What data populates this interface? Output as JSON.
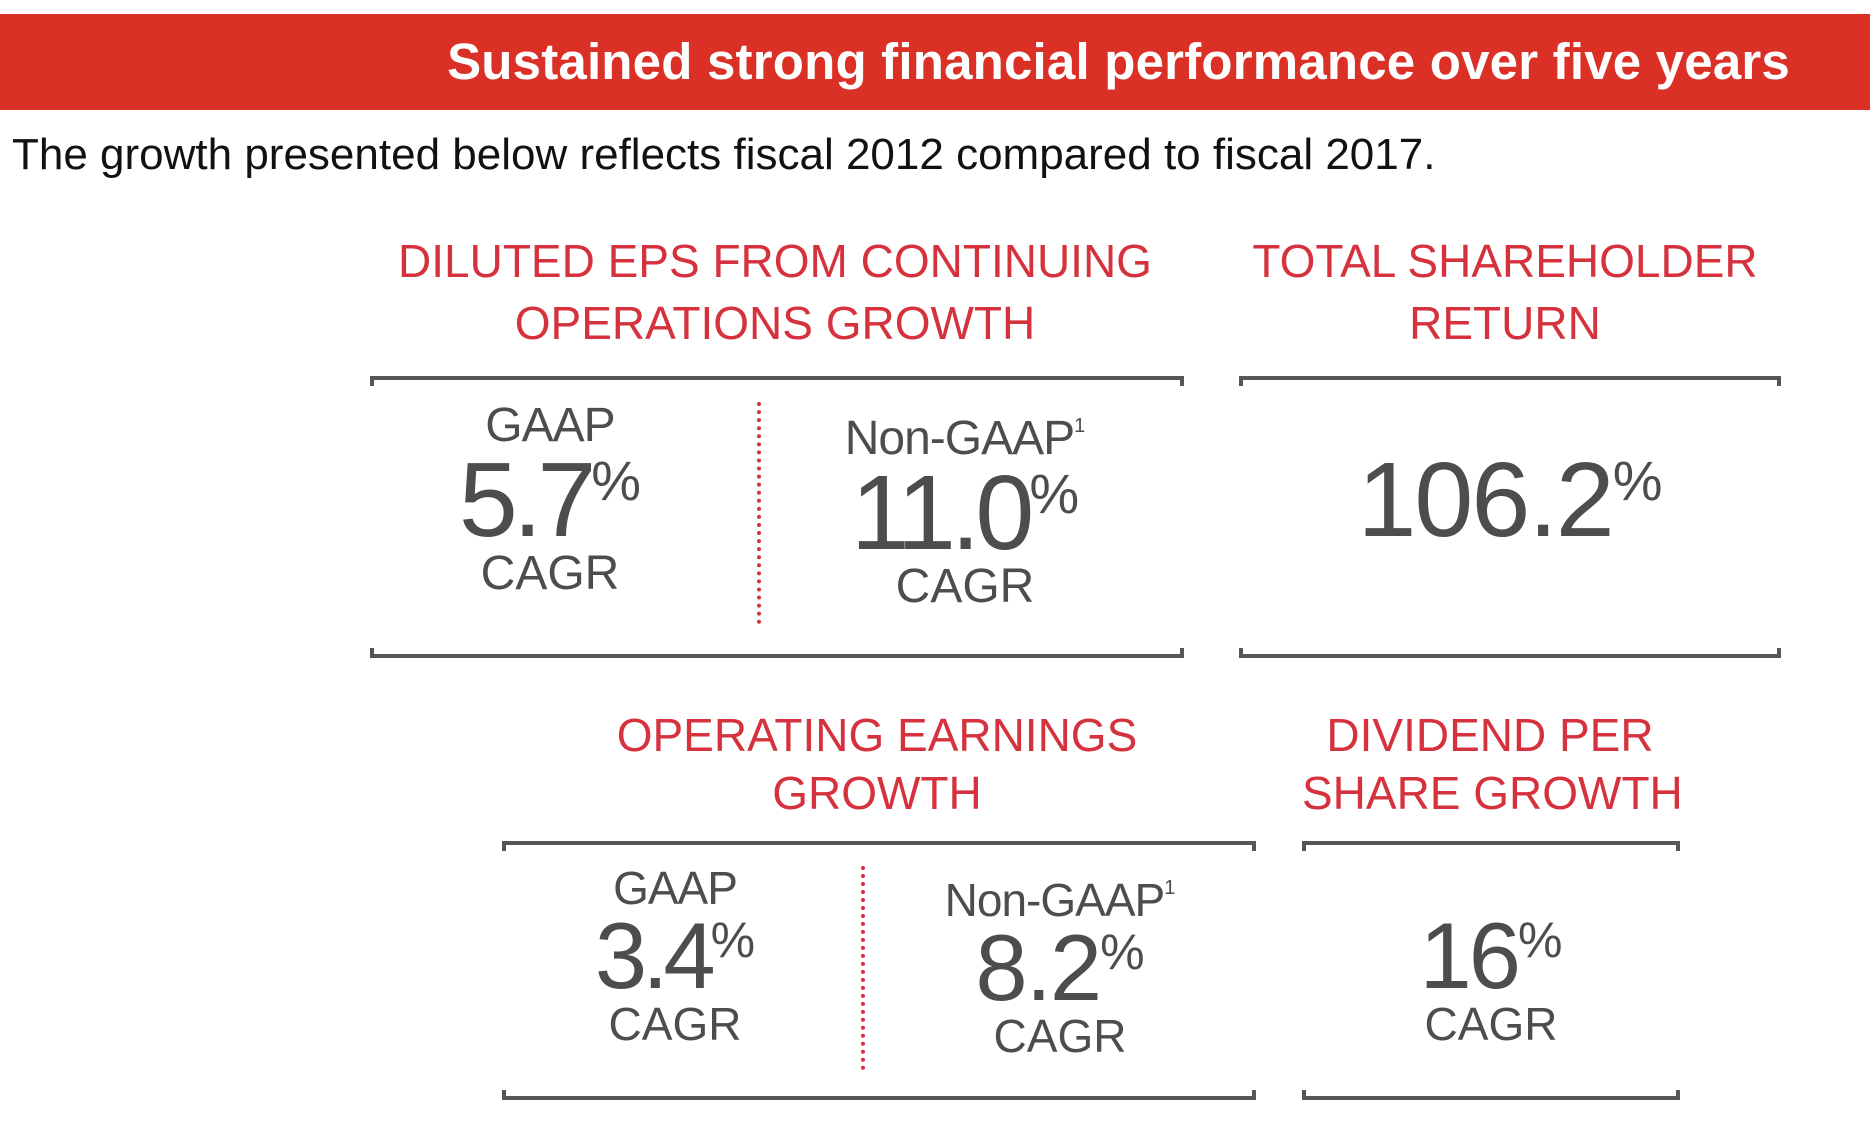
{
  "header": {
    "title": "Sustained strong financial performance over five years"
  },
  "intro": "The growth presented below reflects fiscal 2012 compared to fiscal 2017.",
  "colors": {
    "banner": "#da3025",
    "heading": "#d5323e",
    "metric_text": "#4d4d4d",
    "bracket": "#565656"
  },
  "sections": {
    "diluted_eps": {
      "heading_line1": "DILUTED EPS FROM CONTINUING",
      "heading_line2": "OPERATIONS GROWTH",
      "gaap": {
        "label": "GAAP",
        "value": "5.7",
        "pct": "%",
        "unit": "CAGR"
      },
      "non_gaap": {
        "label": "Non-GAAP",
        "footnote": "1",
        "value": "11.0",
        "pct": "%",
        "unit": "CAGR"
      }
    },
    "tsr": {
      "heading_line1": "TOTAL SHAREHOLDER",
      "heading_line2": "RETURN",
      "value": "106.2",
      "pct": "%"
    },
    "operating_earnings": {
      "heading_line1": "OPERATING EARNINGS",
      "heading_line2": "GROWTH",
      "gaap": {
        "label": "GAAP",
        "value": "3.4",
        "pct": "%",
        "unit": "CAGR"
      },
      "non_gaap": {
        "label": "Non-GAAP",
        "footnote": "1",
        "value": "8.2",
        "pct": "%",
        "unit": "CAGR"
      }
    },
    "dividend": {
      "heading_line1": "DIVIDEND PER",
      "heading_line2": "SHARE GROWTH",
      "value": "16",
      "pct": "%",
      "unit": "CAGR"
    }
  }
}
